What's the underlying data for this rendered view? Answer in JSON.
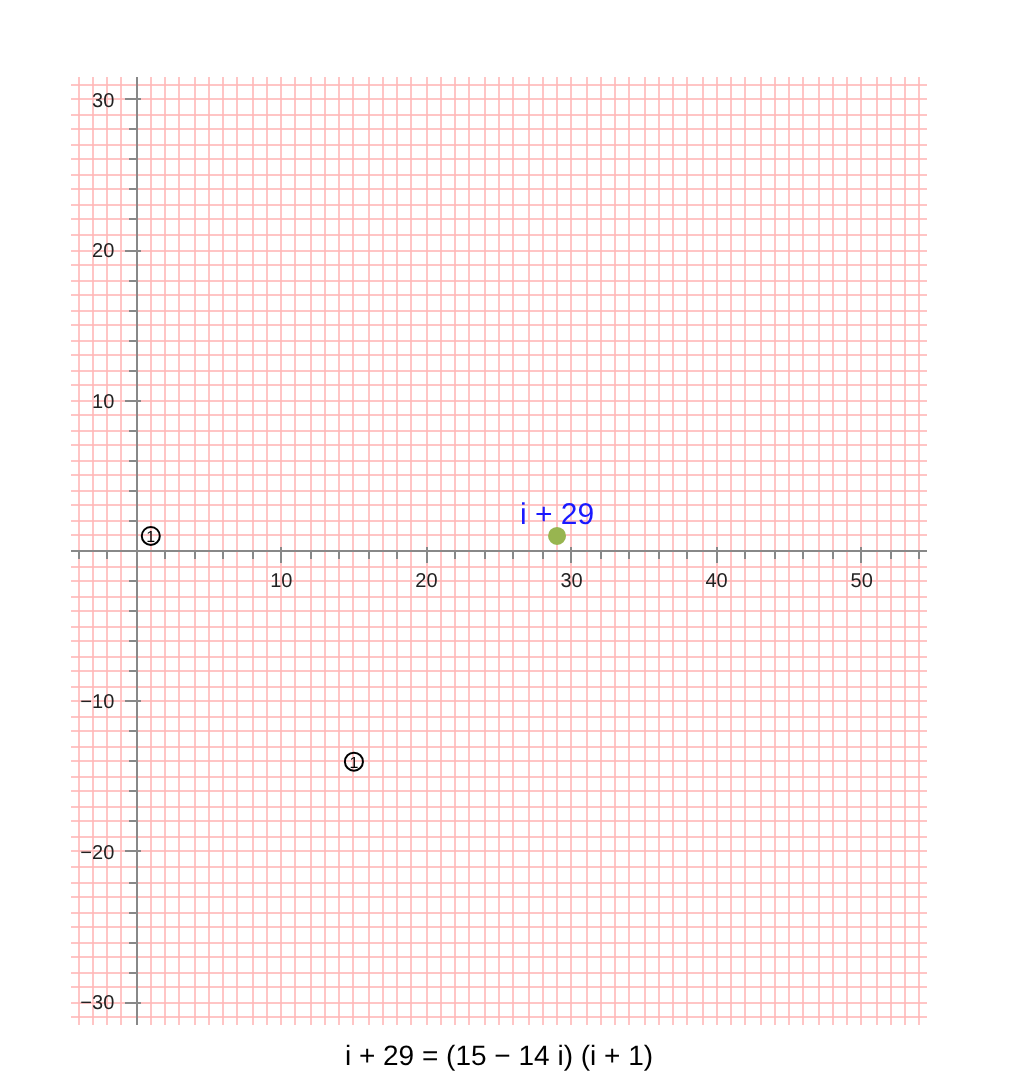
{
  "chart_data": {
    "type": "scatter",
    "xlim": [
      -4.5,
      54.5
    ],
    "ylim": [
      -31.5,
      31.5
    ],
    "xticks": [
      10,
      20,
      30,
      40,
      50
    ],
    "yticks": [
      -30,
      -20,
      -10,
      10,
      20,
      30
    ],
    "grid": true,
    "marker": "circle",
    "series": [
      {
        "x": [
          1,
          15
        ],
        "values": [
          1,
          -14
        ],
        "color": "#000000"
      },
      {
        "x": [
          29
        ],
        "values": [
          1
        ],
        "color": "#98b550"
      }
    ],
    "annotations": [
      {
        "text": "1",
        "x": 1,
        "y": 1
      },
      {
        "text": "1",
        "x": 15,
        "y": -14
      },
      {
        "text": "i + 29",
        "x": 29,
        "y": 1
      },
      "i + 29 = (15 − 14 i) (i + 1)"
    ]
  }
}
